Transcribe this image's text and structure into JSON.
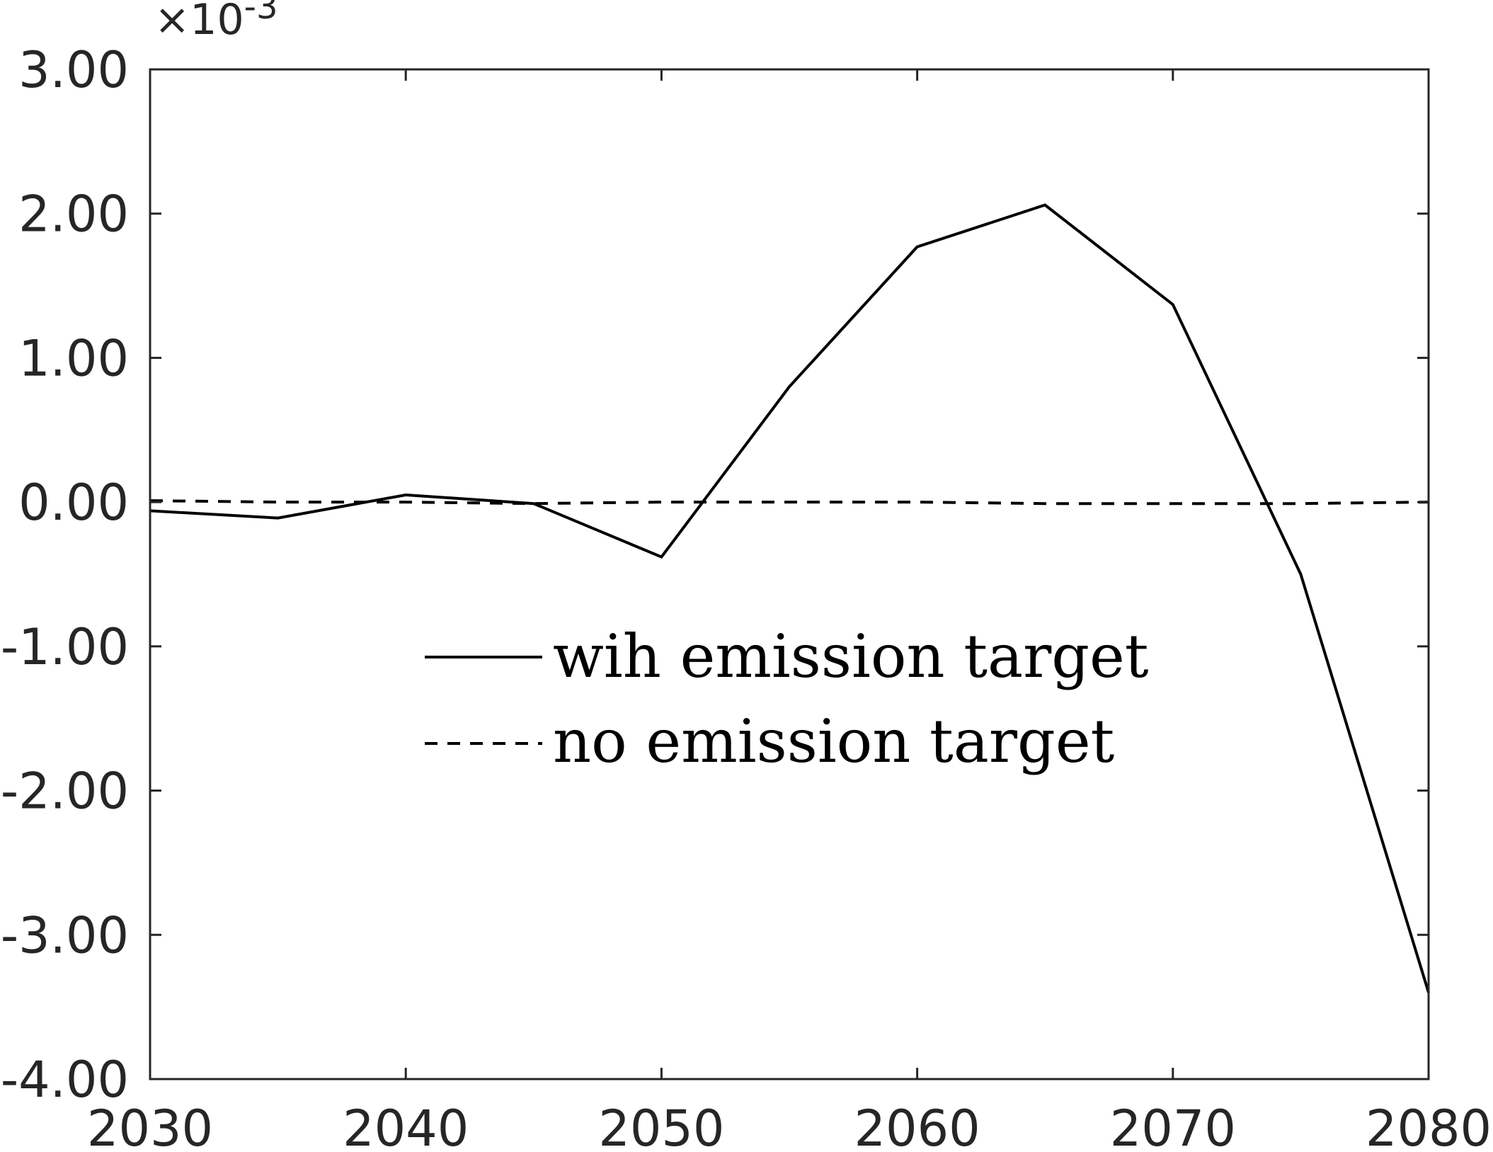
{
  "chart_data": {
    "type": "line",
    "x": [
      2030,
      2035,
      2040,
      2045,
      2050,
      2055,
      2060,
      2065,
      2070,
      2075,
      2080
    ],
    "series": [
      {
        "name": "wih emission target",
        "style": "solid",
        "color": "#000000",
        "values": [
          -6e-05,
          -0.00011,
          5e-05,
          -1e-05,
          -0.00038,
          0.0008,
          0.00177,
          0.00206,
          0.00137,
          -0.0005,
          -0.0034
        ]
      },
      {
        "name": "no emission target",
        "style": "dashed",
        "color": "#000000",
        "values": [
          1e-05,
          0.0,
          0.0,
          -1e-05,
          0.0,
          0.0,
          0.0,
          -1e-05,
          -1e-05,
          -1e-05,
          0.0
        ]
      }
    ],
    "xlim": [
      2030,
      2080
    ],
    "ylim": [
      -0.004,
      0.003
    ],
    "xticks": [
      2030,
      2040,
      2050,
      2060,
      2070,
      2080
    ],
    "xtick_labels": [
      "2030",
      "2040",
      "2050",
      "2060",
      "2070",
      "2080"
    ],
    "yticks": [
      0.003,
      0.002,
      0.001,
      0.0,
      -0.001,
      -0.002,
      -0.003,
      -0.004
    ],
    "ytick_labels": [
      "3.00",
      "2.00",
      "1.00",
      "0.00",
      "-1.00",
      "-2.00",
      "-3.00",
      "-4.00"
    ],
    "y_exponent_label": "×10",
    "y_exponent_power": "-3",
    "grid": false,
    "legend_position": "center",
    "title": "",
    "xlabel": "",
    "ylabel": ""
  }
}
